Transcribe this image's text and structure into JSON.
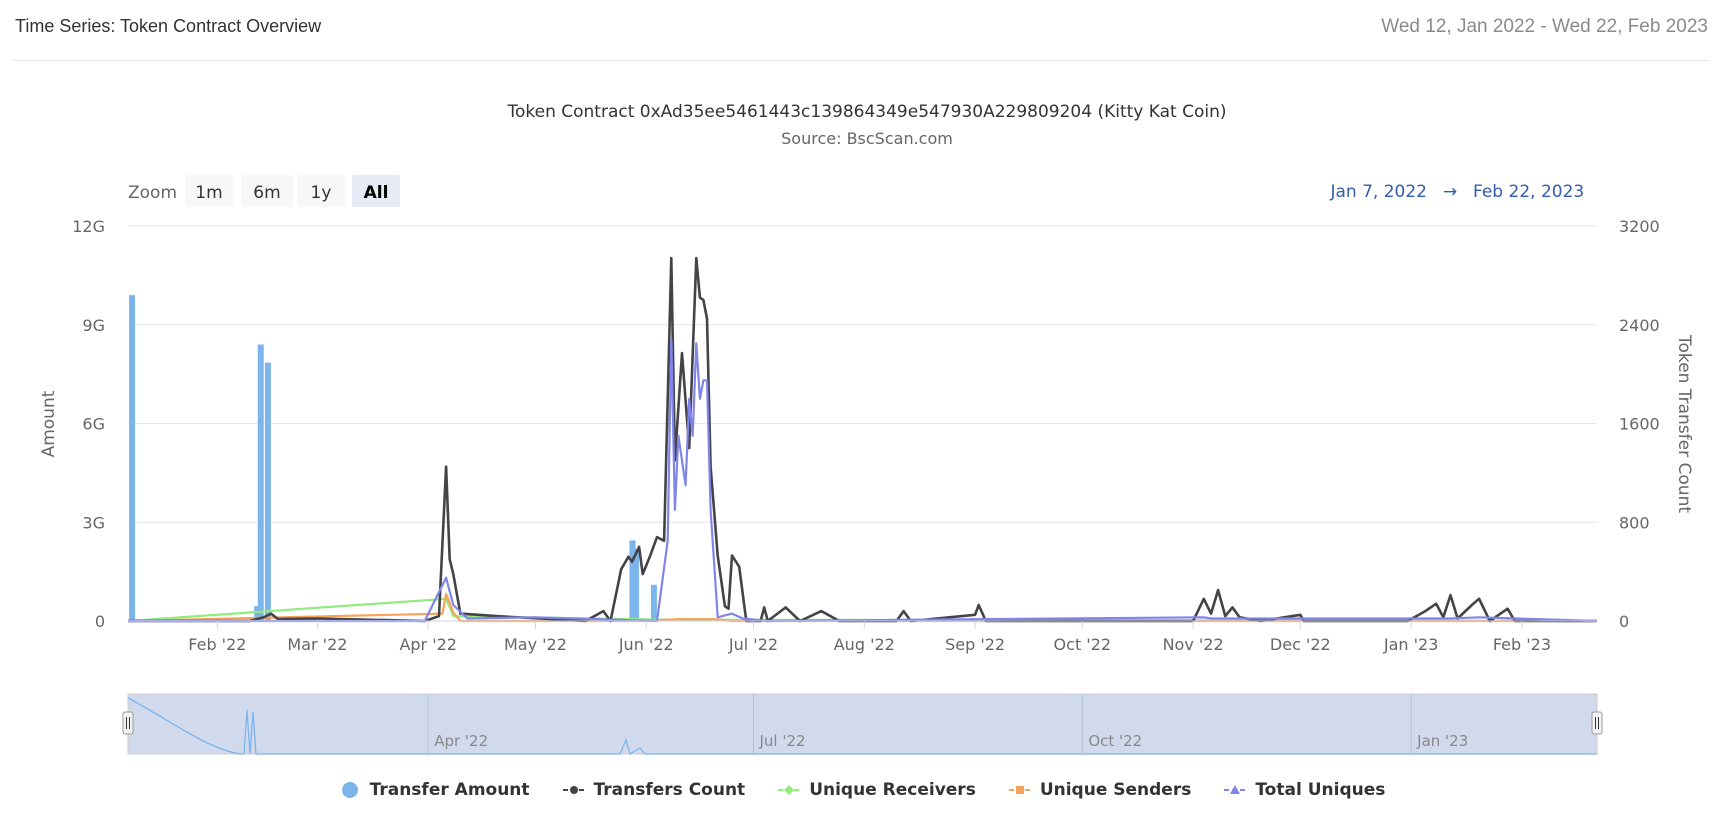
{
  "header": {
    "title": "Time Series: Token Contract Overview",
    "date_range": "Wed 12, Jan 2022 - Wed 22, Feb 2023"
  },
  "zoom": {
    "label": "Zoom",
    "buttons": [
      "1m",
      "6m",
      "1y",
      "All"
    ],
    "selected": "All"
  },
  "range_display": {
    "from": "Jan 7, 2022",
    "arrow": "→",
    "to": "Feb 22, 2023"
  },
  "chart_data": {
    "type": "line",
    "title": "Token Contract 0xAd35ee5461443c139864349e547930A229809204 (Kitty Kat Coin)",
    "subtitle": "Source: BscScan.com",
    "x_range": [
      "2022-01-07",
      "2023-02-22"
    ],
    "x_ticks": [
      "Feb '22",
      "Mar '22",
      "Apr '22",
      "May '22",
      "Jun '22",
      "Jul '22",
      "Aug '22",
      "Sep '22",
      "Oct '22",
      "Nov '22",
      "Dec '22",
      "Jan '23",
      "Feb '23"
    ],
    "y_left": {
      "label": "Amount",
      "ticks": [
        "0",
        "3G",
        "6G",
        "9G",
        "12G"
      ],
      "ylim": [
        0,
        12
      ]
    },
    "y_right": {
      "label": "Token Transfer Count",
      "ticks": [
        "0",
        "800",
        "1600",
        "2400",
        "3200"
      ],
      "ylim": [
        0,
        3200
      ]
    },
    "legend_position": "bottom",
    "grid": true,
    "navigator_ticks": [
      "Apr '22",
      "Jul '22",
      "Oct '22",
      "Jan '23"
    ],
    "colors": {
      "transfer_amount": "#7cb5ec",
      "transfers_count": "#434348",
      "unique_receivers": "#90ed7d",
      "unique_senders": "#f7a35c",
      "total_uniques": "#8085e9"
    },
    "series": [
      {
        "name": "Transfer Amount",
        "kind": "column",
        "axis": "left",
        "unit": "G",
        "points": [
          [
            "2022-01-08",
            9.9
          ],
          [
            "2022-02-12",
            0.45
          ],
          [
            "2022-02-13",
            8.4
          ],
          [
            "2022-02-15",
            7.85
          ],
          [
            "2022-05-28",
            2.45
          ],
          [
            "2022-05-29",
            2.2
          ],
          [
            "2022-06-03",
            1.1
          ]
        ]
      },
      {
        "name": "Transfers Count",
        "kind": "line",
        "axis": "right",
        "points": [
          [
            "2022-01-07",
            0
          ],
          [
            "2022-02-10",
            0
          ],
          [
            "2022-02-14",
            30
          ],
          [
            "2022-02-16",
            60
          ],
          [
            "2022-02-18",
            15
          ],
          [
            "2022-03-01",
            20
          ],
          [
            "2022-03-31",
            0
          ],
          [
            "2022-04-04",
            40
          ],
          [
            "2022-04-06",
            1250
          ],
          [
            "2022-04-07",
            500
          ],
          [
            "2022-04-08",
            380
          ],
          [
            "2022-04-10",
            60
          ],
          [
            "2022-04-20",
            40
          ],
          [
            "2022-05-15",
            0
          ],
          [
            "2022-05-20",
            80
          ],
          [
            "2022-05-22",
            0
          ],
          [
            "2022-05-25",
            420
          ],
          [
            "2022-05-27",
            520
          ],
          [
            "2022-05-28",
            480
          ],
          [
            "2022-05-30",
            600
          ],
          [
            "2022-05-31",
            380
          ],
          [
            "2022-06-02",
            520
          ],
          [
            "2022-06-04",
            680
          ],
          [
            "2022-06-06",
            650
          ],
          [
            "2022-06-08",
            2940
          ],
          [
            "2022-06-09",
            1300
          ],
          [
            "2022-06-11",
            2170
          ],
          [
            "2022-06-13",
            1400
          ],
          [
            "2022-06-15",
            2940
          ],
          [
            "2022-06-16",
            2620
          ],
          [
            "2022-06-17",
            2600
          ],
          [
            "2022-06-18",
            2450
          ],
          [
            "2022-06-19",
            1250
          ],
          [
            "2022-06-21",
            530
          ],
          [
            "2022-06-23",
            120
          ],
          [
            "2022-06-24",
            100
          ],
          [
            "2022-06-25",
            530
          ],
          [
            "2022-06-27",
            440
          ],
          [
            "2022-06-29",
            0
          ],
          [
            "2022-07-03",
            0
          ],
          [
            "2022-07-04",
            110
          ],
          [
            "2022-07-05",
            0
          ],
          [
            "2022-07-10",
            110
          ],
          [
            "2022-07-14",
            0
          ],
          [
            "2022-07-20",
            80
          ],
          [
            "2022-07-25",
            0
          ],
          [
            "2022-08-10",
            0
          ],
          [
            "2022-08-12",
            80
          ],
          [
            "2022-08-14",
            0
          ],
          [
            "2022-09-01",
            50
          ],
          [
            "2022-09-02",
            130
          ],
          [
            "2022-09-04",
            0
          ],
          [
            "2022-10-01",
            0
          ],
          [
            "2022-11-01",
            0
          ],
          [
            "2022-11-02",
            60
          ],
          [
            "2022-11-04",
            180
          ],
          [
            "2022-11-06",
            60
          ],
          [
            "2022-11-08",
            250
          ],
          [
            "2022-11-10",
            40
          ],
          [
            "2022-11-12",
            110
          ],
          [
            "2022-11-14",
            30
          ],
          [
            "2022-11-20",
            0
          ],
          [
            "2022-12-01",
            50
          ],
          [
            "2022-12-02",
            0
          ],
          [
            "2022-12-31",
            0
          ],
          [
            "2023-01-05",
            80
          ],
          [
            "2023-01-08",
            140
          ],
          [
            "2023-01-10",
            30
          ],
          [
            "2023-01-12",
            210
          ],
          [
            "2023-01-14",
            20
          ],
          [
            "2023-01-18",
            130
          ],
          [
            "2023-01-20",
            180
          ],
          [
            "2023-01-23",
            0
          ],
          [
            "2023-01-28",
            100
          ],
          [
            "2023-01-30",
            0
          ],
          [
            "2023-02-22",
            0
          ]
        ]
      },
      {
        "name": "Unique Receivers",
        "kind": "line",
        "axis": "right",
        "points": [
          [
            "2022-01-07",
            0
          ],
          [
            "2022-04-06",
            180
          ],
          [
            "2022-04-08",
            40
          ],
          [
            "2022-06-08",
            10
          ],
          [
            "2022-06-25",
            10
          ],
          [
            "2023-02-22",
            0
          ]
        ]
      },
      {
        "name": "Unique Senders",
        "kind": "line",
        "axis": "right",
        "points": [
          [
            "2022-01-07",
            0
          ],
          [
            "2022-04-05",
            60
          ],
          [
            "2022-04-06",
            220
          ],
          [
            "2022-04-08",
            70
          ],
          [
            "2022-04-10",
            0
          ],
          [
            "2022-06-01",
            0
          ],
          [
            "2022-06-10",
            15
          ],
          [
            "2022-06-20",
            15
          ],
          [
            "2022-06-25",
            0
          ],
          [
            "2023-02-22",
            0
          ]
        ]
      },
      {
        "name": "Total Uniques",
        "kind": "line",
        "axis": "right",
        "points": [
          [
            "2022-01-07",
            0
          ],
          [
            "2022-03-31",
            0
          ],
          [
            "2022-04-06",
            350
          ],
          [
            "2022-04-08",
            130
          ],
          [
            "2022-04-12",
            20
          ],
          [
            "2022-05-01",
            30
          ],
          [
            "2022-06-04",
            0
          ],
          [
            "2022-06-07",
            650
          ],
          [
            "2022-06-08",
            2280
          ],
          [
            "2022-06-09",
            900
          ],
          [
            "2022-06-10",
            1500
          ],
          [
            "2022-06-12",
            1100
          ],
          [
            "2022-06-13",
            1800
          ],
          [
            "2022-06-14",
            1500
          ],
          [
            "2022-06-15",
            2250
          ],
          [
            "2022-06-16",
            1800
          ],
          [
            "2022-06-17",
            1950
          ],
          [
            "2022-06-18",
            1950
          ],
          [
            "2022-06-19",
            900
          ],
          [
            "2022-06-21",
            30
          ],
          [
            "2022-06-25",
            60
          ],
          [
            "2022-06-28",
            20
          ],
          [
            "2022-07-05",
            0
          ],
          [
            "2022-11-04",
            30
          ],
          [
            "2022-11-06",
            20
          ],
          [
            "2023-01-12",
            20
          ],
          [
            "2023-01-20",
            30
          ],
          [
            "2023-02-22",
            0
          ]
        ]
      }
    ]
  }
}
